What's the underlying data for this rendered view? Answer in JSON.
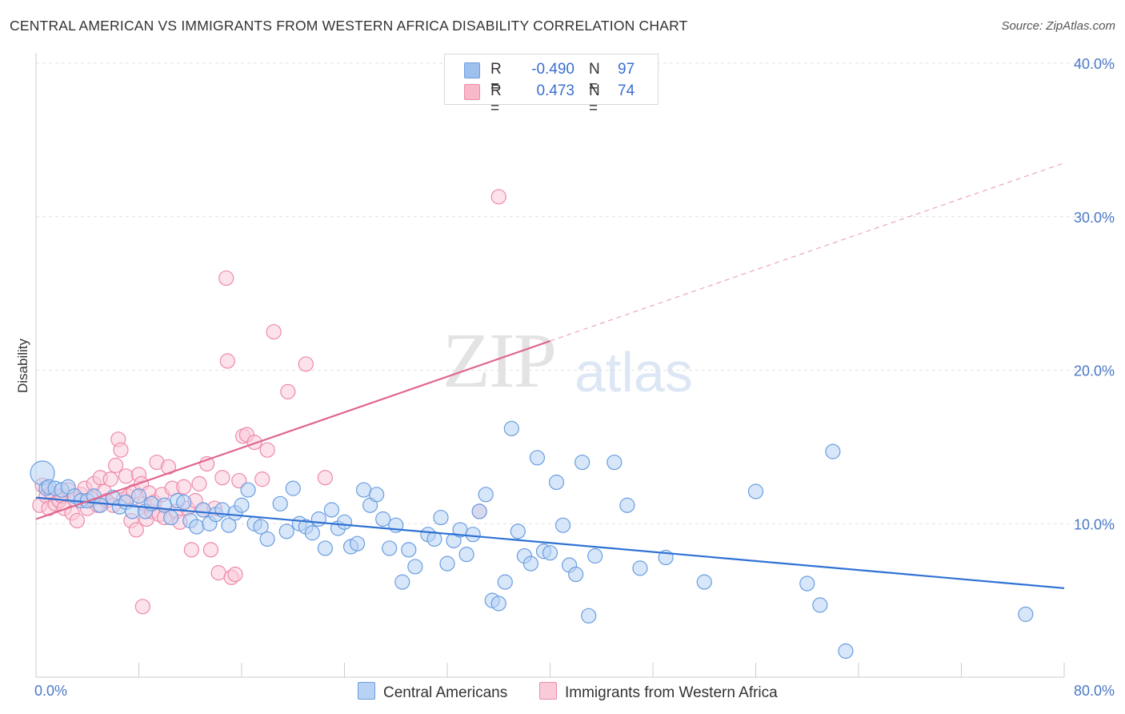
{
  "title": "CENTRAL AMERICAN VS IMMIGRANTS FROM WESTERN AFRICA DISABILITY CORRELATION CHART",
  "source": "Source: ZipAtlas.com",
  "watermark": {
    "zip": "ZIP",
    "atlas": "atlas"
  },
  "legend": {
    "rows": [
      {
        "r_label": "R =",
        "r_value": "-0.490",
        "n_label": "N =",
        "n_value": "97",
        "color": "#9ec0ee",
        "border": "#6a9ee0"
      },
      {
        "r_label": "R =",
        "r_value": "0.473",
        "n_label": "N =",
        "n_value": "74",
        "color": "#f7b8c9",
        "border": "#ee8aa8"
      }
    ]
  },
  "bottom_legend": [
    {
      "label": "Central Americans",
      "color": "#b8d2f4",
      "border": "#6a9ee0"
    },
    {
      "label": "Immigrants from Western Africa",
      "color": "#f9cbd8",
      "border": "#ee8aa8"
    }
  ],
  "chart_data": {
    "type": "scatter",
    "title": "CENTRAL AMERICAN VS IMMIGRANTS FROM WESTERN AFRICA DISABILITY CORRELATION CHART",
    "xlabel": "",
    "ylabel": "Disability",
    "xlim": [
      0,
      80
    ],
    "ylim": [
      0,
      40
    ],
    "x_tick_labels": [
      "0.0%",
      "80.0%"
    ],
    "y_ticks": [
      10,
      20,
      30,
      40
    ],
    "y_tick_labels": [
      "10.0%",
      "20.0%",
      "30.0%",
      "40.0%"
    ],
    "grid": "horizontal dashed",
    "series": [
      {
        "name": "Central Americans",
        "color": "#6a9ee0",
        "fill": "#b8d2f4",
        "trend": {
          "x0": 0,
          "y0": 11.7,
          "x1": 80,
          "y1": 5.8,
          "dashed_after": null
        },
        "points": [
          [
            0.5,
            13.3
          ],
          [
            0.8,
            12.3
          ],
          [
            1,
            12.4
          ],
          [
            1.5,
            12.3
          ],
          [
            2,
            12.2
          ],
          [
            2.5,
            12.4
          ],
          [
            3,
            11.8
          ],
          [
            3.5,
            11.5
          ],
          [
            4,
            11.5
          ],
          [
            4.5,
            11.8
          ],
          [
            5,
            11.2
          ],
          [
            6,
            11.7
          ],
          [
            6.5,
            11.1
          ],
          [
            7,
            11.4
          ],
          [
            7.5,
            10.8
          ],
          [
            8,
            11.8
          ],
          [
            8.5,
            10.8
          ],
          [
            9,
            11.3
          ],
          [
            10,
            11.2
          ],
          [
            10.5,
            10.4
          ],
          [
            11,
            11.5
          ],
          [
            11.5,
            11.4
          ],
          [
            12,
            10.2
          ],
          [
            12.5,
            9.8
          ],
          [
            13,
            10.9
          ],
          [
            13.5,
            10.0
          ],
          [
            14,
            10.6
          ],
          [
            14.5,
            10.9
          ],
          [
            15,
            9.9
          ],
          [
            15.5,
            10.7
          ],
          [
            16,
            11.2
          ],
          [
            16.5,
            12.2
          ],
          [
            17,
            10.0
          ],
          [
            17.5,
            9.8
          ],
          [
            18,
            9.0
          ],
          [
            19,
            11.3
          ],
          [
            19.5,
            9.5
          ],
          [
            20,
            12.3
          ],
          [
            20.5,
            10.0
          ],
          [
            21,
            9.8
          ],
          [
            21.5,
            9.4
          ],
          [
            22,
            10.3
          ],
          [
            22.5,
            8.4
          ],
          [
            23,
            10.9
          ],
          [
            23.5,
            9.7
          ],
          [
            24,
            10.1
          ],
          [
            24.5,
            8.5
          ],
          [
            25,
            8.7
          ],
          [
            25.5,
            12.2
          ],
          [
            26,
            11.2
          ],
          [
            26.5,
            11.9
          ],
          [
            27,
            10.3
          ],
          [
            27.5,
            8.4
          ],
          [
            28,
            9.9
          ],
          [
            29,
            8.3
          ],
          [
            29.5,
            7.2
          ],
          [
            28.5,
            6.2
          ],
          [
            30.5,
            9.3
          ],
          [
            31,
            9.0
          ],
          [
            31.5,
            10.4
          ],
          [
            32,
            7.4
          ],
          [
            32.5,
            8.9
          ],
          [
            33,
            9.6
          ],
          [
            33.5,
            8.0
          ],
          [
            34,
            9.3
          ],
          [
            34.5,
            10.8
          ],
          [
            35,
            11.9
          ],
          [
            35.5,
            5.0
          ],
          [
            36,
            4.8
          ],
          [
            36.5,
            6.2
          ],
          [
            37,
            16.2
          ],
          [
            37.5,
            9.5
          ],
          [
            38,
            7.9
          ],
          [
            38.5,
            7.4
          ],
          [
            39,
            14.3
          ],
          [
            39.5,
            8.2
          ],
          [
            40,
            8.1
          ],
          [
            40.5,
            12.7
          ],
          [
            41,
            9.9
          ],
          [
            41.5,
            7.3
          ],
          [
            42,
            6.7
          ],
          [
            42.5,
            14.0
          ],
          [
            43,
            4.0
          ],
          [
            43.5,
            7.9
          ],
          [
            45,
            14.0
          ],
          [
            46,
            11.2
          ],
          [
            47,
            7.1
          ],
          [
            49,
            7.8
          ],
          [
            52,
            6.2
          ],
          [
            56,
            12.1
          ],
          [
            60,
            6.1
          ],
          [
            61,
            4.7
          ],
          [
            62,
            14.7
          ],
          [
            63,
            1.7
          ],
          [
            77,
            4.1
          ]
        ]
      },
      {
        "name": "Immigrants from Western Africa",
        "color": "#ee8aa8",
        "fill": "#f9cbd8",
        "trend": {
          "x0": 0,
          "y0": 10.3,
          "x1": 80,
          "y1": 33.5,
          "dashed_after": 40
        },
        "points": [
          [
            0.3,
            11.2
          ],
          [
            0.5,
            12.5
          ],
          [
            0.8,
            11.8
          ],
          [
            1,
            11.0
          ],
          [
            1.2,
            12.0
          ],
          [
            1.5,
            11.3
          ],
          [
            1.8,
            11.5
          ],
          [
            2,
            11.8
          ],
          [
            2.2,
            11.0
          ],
          [
            2.5,
            12.2
          ],
          [
            2.8,
            10.7
          ],
          [
            3,
            11.6
          ],
          [
            3.2,
            10.2
          ],
          [
            3.5,
            11.9
          ],
          [
            3.8,
            12.3
          ],
          [
            4,
            11.0
          ],
          [
            4.3,
            11.6
          ],
          [
            4.5,
            12.6
          ],
          [
            4.8,
            11.2
          ],
          [
            5,
            13.0
          ],
          [
            5.3,
            12.1
          ],
          [
            5.5,
            11.5
          ],
          [
            5.8,
            12.9
          ],
          [
            6,
            11.2
          ],
          [
            6.2,
            13.8
          ],
          [
            6.4,
            15.5
          ],
          [
            6.6,
            14.8
          ],
          [
            6.8,
            11.6
          ],
          [
            7,
            13.1
          ],
          [
            7.2,
            11.8
          ],
          [
            7.4,
            10.2
          ],
          [
            7.6,
            12.1
          ],
          [
            7.8,
            9.6
          ],
          [
            8,
            13.2
          ],
          [
            8.2,
            12.6
          ],
          [
            8.4,
            11.3
          ],
          [
            8.6,
            10.3
          ],
          [
            8.8,
            12.0
          ],
          [
            9,
            10.8
          ],
          [
            9.2,
            11.4
          ],
          [
            9.4,
            14.0
          ],
          [
            9.6,
            10.6
          ],
          [
            9.8,
            11.9
          ],
          [
            10,
            10.4
          ],
          [
            10.3,
            13.7
          ],
          [
            10.6,
            12.3
          ],
          [
            10.9,
            10.8
          ],
          [
            11.2,
            10.1
          ],
          [
            11.5,
            12.4
          ],
          [
            11.8,
            11.0
          ],
          [
            12.1,
            8.3
          ],
          [
            12.4,
            11.5
          ],
          [
            12.7,
            12.6
          ],
          [
            13,
            10.9
          ],
          [
            13.3,
            13.9
          ],
          [
            13.6,
            8.3
          ],
          [
            13.9,
            11.0
          ],
          [
            14.2,
            6.8
          ],
          [
            14.5,
            13.0
          ],
          [
            14.8,
            26.0
          ],
          [
            14.9,
            20.6
          ],
          [
            15.2,
            6.5
          ],
          [
            15.5,
            6.7
          ],
          [
            15.8,
            12.8
          ],
          [
            16.1,
            15.7
          ],
          [
            16.4,
            15.8
          ],
          [
            17,
            15.3
          ],
          [
            17.6,
            12.9
          ],
          [
            18,
            14.8
          ],
          [
            18.5,
            22.5
          ],
          [
            19.6,
            18.6
          ],
          [
            21,
            20.4
          ],
          [
            22.5,
            13.0
          ],
          [
            34.5,
            10.8
          ],
          [
            36,
            31.3
          ],
          [
            8.3,
            4.6
          ]
        ]
      }
    ]
  }
}
